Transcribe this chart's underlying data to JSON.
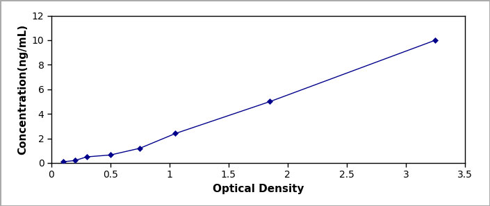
{
  "x": [
    0.1,
    0.2,
    0.3,
    0.5,
    0.75,
    1.05,
    1.85,
    3.25
  ],
  "y": [
    0.1,
    0.2,
    0.5,
    0.65,
    1.2,
    2.4,
    5.0,
    10.0
  ],
  "line_color": "#00008B",
  "marker": "D",
  "marker_size": 4,
  "marker_color": "#00008B",
  "xlabel": "Optical Density",
  "ylabel": "Concentration(ng/mL)",
  "xlim": [
    0,
    3.5
  ],
  "ylim": [
    0,
    12
  ],
  "xticks": [
    0,
    0.5,
    1.0,
    1.5,
    2.0,
    2.5,
    3.0,
    3.5
  ],
  "yticks": [
    0,
    2,
    4,
    6,
    8,
    10,
    12
  ],
  "xlabel_fontsize": 11,
  "ylabel_fontsize": 11,
  "tick_fontsize": 10,
  "background_color": "#ffffff",
  "linewidth": 1.0,
  "border_color": "#aaaaaa",
  "figure_width": 7.05,
  "figure_height": 2.97
}
